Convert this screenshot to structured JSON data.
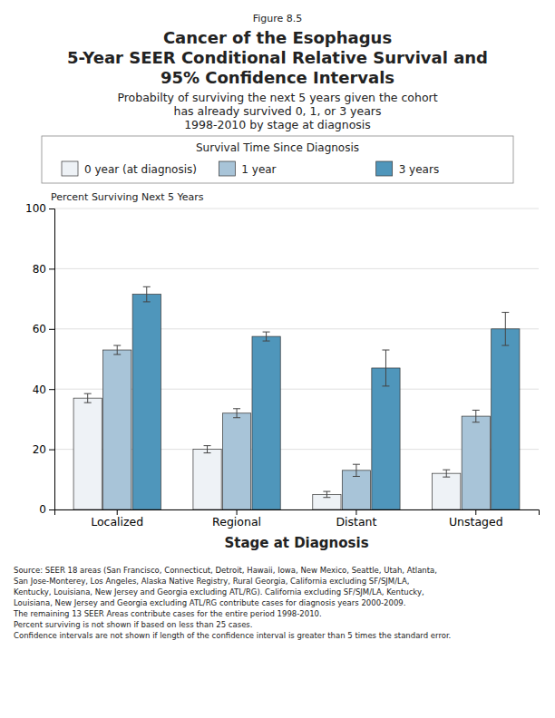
{
  "chart_data": {
    "type": "bar",
    "figure_label": "Figure 8.5",
    "title": [
      "Cancer of the Esophagus",
      "5-Year SEER Conditional Relative Survival and",
      "95% Confidence Intervals"
    ],
    "subtitle": [
      "Probabilty of surviving the next 5 years given the cohort",
      "has already survived 0, 1, or 3 years",
      "1998-2010 by stage at diagnosis"
    ],
    "legend_title": "Survival Time Since Diagnosis",
    "y_label": "Percent Surviving Next 5 Years",
    "x_label": "Stage at Diagnosis",
    "note": [
      "Source:  SEER 18 areas (San Francisco, Connecticut, Detroit, Hawaii, Iowa, New Mexico, Seattle, Utah, Atlanta,",
      "San Jose-Monterey, Los Angeles, Alaska Native Registry, Rural Georgia, California excluding SF/SJM/LA,",
      "Kentucky, Louisiana, New Jersey and Georgia excluding ATL/RG). California excluding SF/SJM/LA, Kentucky,",
      "Louisiana, New Jersey and Georgia excluding ATL/RG contribute cases for diagnosis years 2000-2009.",
      "The remaining 13 SEER Areas contribute cases for the entire period 1998-2010.",
      "Percent surviving is not shown if based on less than 25 cases.",
      "Confidence intervals are not shown if length of the confidence interval is greater than 5 times the standard error."
    ],
    "categories": [
      "Localized",
      "Regional",
      "Distant",
      "Unstaged"
    ],
    "series": [
      {
        "name": "0 year (at diagnosis)",
        "color": "#eef2f6",
        "values": [
          37.0,
          20.0,
          5.0,
          12.0
        ],
        "errors": [
          1.5,
          1.2,
          1.0,
          1.2
        ]
      },
      {
        "name": "1 year",
        "color": "#a8c4d8",
        "values": [
          53.0,
          32.0,
          13.0,
          31.0
        ],
        "errors": [
          1.5,
          1.5,
          2.0,
          2.0
        ]
      },
      {
        "name": "3 years",
        "color": "#4f96bb",
        "values": [
          71.5,
          57.5,
          47.0,
          60.0
        ],
        "errors": [
          2.5,
          1.5,
          6.0,
          5.5
        ]
      }
    ],
    "ylim": [
      0,
      100
    ],
    "yticks": [
      0,
      20,
      40,
      60,
      80,
      100
    ],
    "grid": true,
    "legend": "top"
  }
}
